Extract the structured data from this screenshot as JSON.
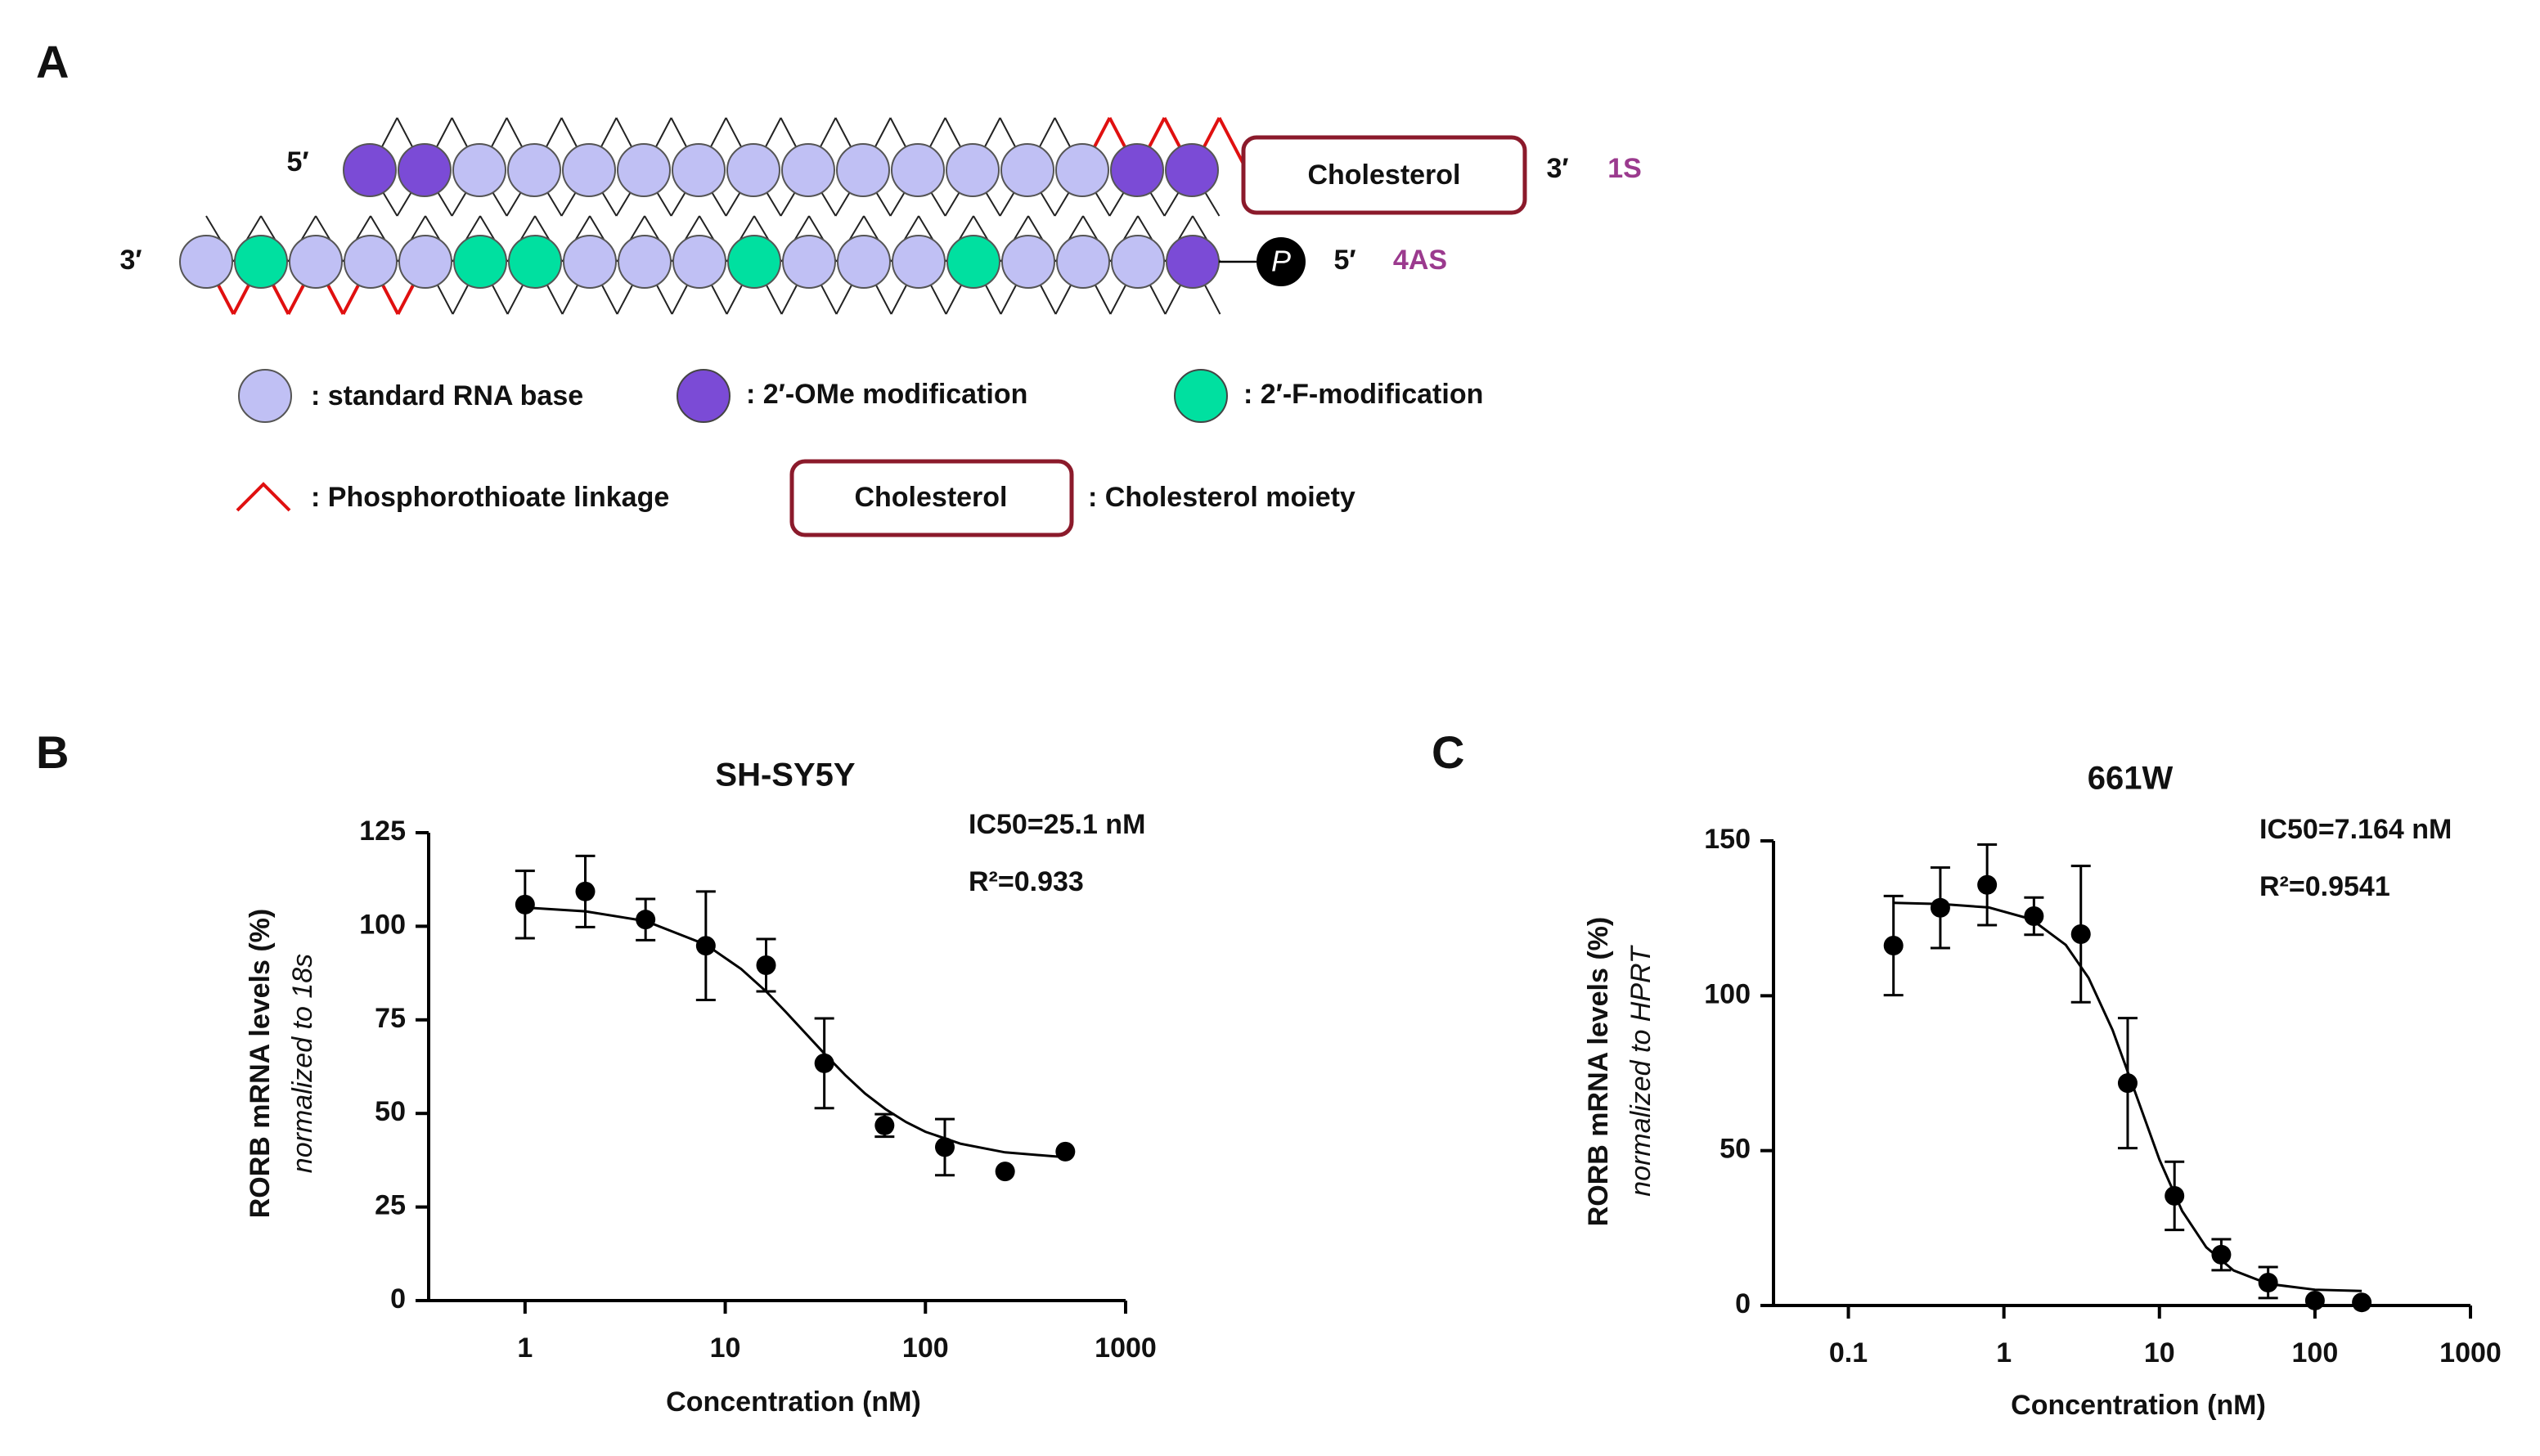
{
  "diagram": {
    "panel": "A",
    "sense": {
      "five_prime": "5′",
      "three_prime": "3′",
      "name": "1S",
      "conjugate": "Cholesterol"
    },
    "antisense": {
      "three_prime": "3′",
      "five_prime": "5′",
      "name": "4AS",
      "phosphate": "P"
    },
    "legend": {
      "rna": ": standard RNA base",
      "ome": ": 2′-OMe modification",
      "fluoro": ": 2′-F-modification",
      "ps": ": Phosphorothioate linkage",
      "box": "Cholesterol",
      "moiety": ": Cholesterol moiety"
    }
  },
  "chart_data": [
    {
      "type": "scatter",
      "panel": "B",
      "title": "SH-SY5Y",
      "annotations": [
        "IC50=25.1 nM",
        "R²=0.933"
      ],
      "x_label": "Concentration (nM)",
      "y_label": "RORB  mRNA levels (%)",
      "y_label_sub": "normalized to 18s",
      "x_log": true,
      "xlim": [
        0.33,
        1000
      ],
      "ylim": [
        0,
        125
      ],
      "xticks": [
        1,
        10,
        100,
        1000
      ],
      "yticks": [
        0,
        25,
        50,
        75,
        100,
        125
      ],
      "color": "#000000",
      "x": [
        1,
        2,
        4,
        8,
        16,
        31.25,
        62.5,
        125,
        250,
        500
      ],
      "values": [
        105.8,
        109.3,
        101.8,
        94.8,
        89.6,
        63.4,
        46.8,
        41,
        34.5,
        39.8
      ],
      "errors": [
        9,
        9.5,
        5.5,
        14.5,
        7,
        12,
        3,
        7.5,
        null,
        null
      ],
      "fit": {
        "x": [
          1,
          2,
          4,
          8,
          12,
          16,
          20,
          25,
          31,
          40,
          50,
          63,
          80,
          100,
          150,
          250,
          500
        ],
        "values": [
          105.0,
          104.0,
          101.4,
          95.1,
          88.6,
          82.6,
          77.2,
          71.6,
          66.2,
          60.1,
          55.3,
          51.2,
          47.7,
          45.1,
          41.9,
          39.6,
          38.3
        ]
      }
    },
    {
      "type": "scatter",
      "panel": "C",
      "title": "661W",
      "annotations": [
        "IC50=7.164 nM",
        "R²=0.9541"
      ],
      "x_label": "Concentration (nM)",
      "y_label": "RORB  mRNA levels (%)",
      "y_label_sub": "normalized to HPRT",
      "x_log": true,
      "xlim": [
        0.033,
        1000
      ],
      "ylim": [
        0,
        150
      ],
      "xticks": [
        0.1,
        1,
        10,
        100,
        1000
      ],
      "yticks": [
        0,
        50,
        100,
        150
      ],
      "color": "#000000",
      "x": [
        0.195,
        0.39,
        0.78,
        1.56,
        3.125,
        6.25,
        12.5,
        25,
        50,
        100,
        200
      ],
      "values": [
        116.2,
        128.4,
        135.8,
        125.7,
        119.9,
        71.8,
        35.4,
        16.4,
        7.4,
        1.6,
        1
      ],
      "errors": [
        16,
        13,
        13,
        6,
        22,
        21,
        11,
        5,
        5,
        null,
        null
      ],
      "fit": {
        "x": [
          0.195,
          0.4,
          0.8,
          1.5,
          2.5,
          3.5,
          5,
          7,
          10,
          14,
          20,
          30,
          50,
          100,
          200
        ],
        "values": [
          130,
          129.6,
          128.5,
          124.7,
          116.4,
          105.8,
          88.9,
          68.7,
          47.1,
          30.5,
          18.8,
          11.3,
          7.0,
          5.1,
          4.7
        ]
      }
    }
  ]
}
